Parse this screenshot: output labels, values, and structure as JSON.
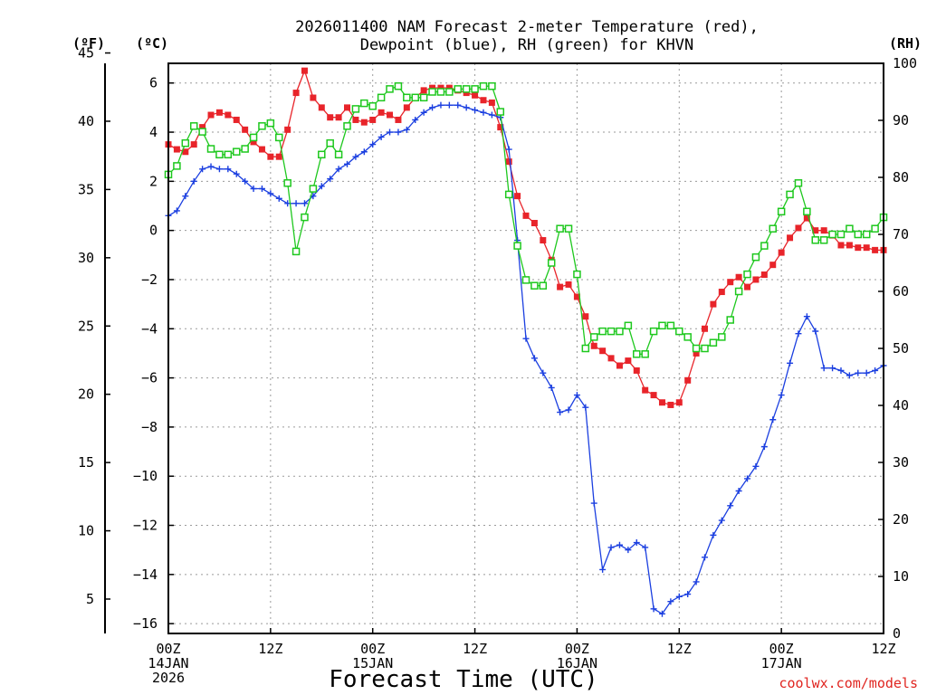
{
  "chart_data": {
    "type": "line",
    "title": "2026011400 NAM Forecast 2-meter Temperature (red), Dewpoint (blue), RH (green) for KHVN",
    "title_line1": "2026011400 NAM Forecast 2-meter Temperature (red),",
    "title_line2": "Dewpoint (blue), RH (green) for KHVN",
    "xlabel": "Forecast Time (UTC)",
    "credit": "coolwx.com/models",
    "units": {
      "fahrenheit": "(ºF)",
      "celsius": "(ºC)",
      "rh": "(RH)"
    },
    "x_range_hours": [
      0,
      84
    ],
    "celsius_range": [
      -16.4,
      6.8
    ],
    "rh_range": [
      0,
      100
    ],
    "fahrenheit_ticks": [
      5,
      10,
      15,
      20,
      25,
      30,
      35,
      40,
      45
    ],
    "celsius_ticks": [
      -16,
      -14,
      -12,
      -10,
      -8,
      -6,
      -4,
      -2,
      0,
      2,
      4,
      6
    ],
    "rh_ticks": [
      0,
      10,
      20,
      30,
      40,
      50,
      60,
      70,
      80,
      90,
      100
    ],
    "x_ticks": [
      {
        "hour": 0,
        "lines": [
          "00Z",
          "14JAN",
          "2026"
        ]
      },
      {
        "hour": 12,
        "lines": [
          "12Z"
        ]
      },
      {
        "hour": 24,
        "lines": [
          "00Z",
          "15JAN"
        ]
      },
      {
        "hour": 36,
        "lines": [
          "12Z"
        ]
      },
      {
        "hour": 48,
        "lines": [
          "00Z",
          "16JAN"
        ]
      },
      {
        "hour": 60,
        "lines": [
          "12Z"
        ]
      },
      {
        "hour": 72,
        "lines": [
          "00Z",
          "17JAN"
        ]
      },
      {
        "hour": 84,
        "lines": [
          "12Z"
        ]
      }
    ],
    "series": [
      {
        "name": "Temperature",
        "unit": "C",
        "color": "#e8242a",
        "marker": "square-filled",
        "x": [
          0,
          1,
          2,
          3,
          4,
          5,
          6,
          7,
          8,
          9,
          10,
          11,
          12,
          13,
          14,
          15,
          16,
          17,
          18,
          19,
          20,
          21,
          22,
          23,
          24,
          25,
          26,
          27,
          28,
          29,
          30,
          31,
          32,
          33,
          34,
          35,
          36,
          37,
          38,
          39,
          40,
          41,
          42,
          43,
          44,
          45,
          46,
          47,
          48,
          49,
          50,
          51,
          52,
          53,
          54,
          55,
          56,
          57,
          58,
          59,
          60,
          61,
          62,
          63,
          64,
          65,
          66,
          67,
          68,
          69,
          70,
          71,
          72,
          73,
          74,
          75,
          76,
          77,
          78,
          79,
          80,
          81,
          82,
          83,
          84
        ],
        "values": [
          3.5,
          3.3,
          3.2,
          3.5,
          4.2,
          4.7,
          4.8,
          4.7,
          4.5,
          4.1,
          3.6,
          3.3,
          3.0,
          3.0,
          4.1,
          5.6,
          6.5,
          5.4,
          5.0,
          4.6,
          4.6,
          5.0,
          4.5,
          4.4,
          4.5,
          4.8,
          4.7,
          4.5,
          5.0,
          5.4,
          5.7,
          5.8,
          5.8,
          5.8,
          5.7,
          5.6,
          5.5,
          5.3,
          5.2,
          4.2,
          2.8,
          1.4,
          0.6,
          0.3,
          -0.4,
          -1.2,
          -2.3,
          -2.2,
          -2.7,
          -3.5,
          -4.7,
          -4.9,
          -5.2,
          -5.5,
          -5.3,
          -5.7,
          -6.5,
          -6.7,
          -7.0,
          -7.1,
          -7.0,
          -6.1,
          -5.0,
          -4.0,
          -3.0,
          -2.5,
          -2.1,
          -1.9,
          -2.3,
          -2.0,
          -1.8,
          -1.4,
          -0.9,
          -0.3,
          0.1,
          0.5,
          0.0,
          0.0,
          -0.2,
          -0.6,
          -0.6,
          -0.7,
          -0.7,
          -0.8,
          -0.8
        ]
      },
      {
        "name": "Dewpoint",
        "unit": "C",
        "color": "#1b3fe0",
        "marker": "plus",
        "x": [
          0,
          1,
          2,
          3,
          4,
          5,
          6,
          7,
          8,
          9,
          10,
          11,
          12,
          13,
          14,
          15,
          16,
          17,
          18,
          19,
          20,
          21,
          22,
          23,
          24,
          25,
          26,
          27,
          28,
          29,
          30,
          31,
          32,
          33,
          34,
          35,
          36,
          37,
          38,
          39,
          40,
          41,
          42,
          43,
          44,
          45,
          46,
          47,
          48,
          49,
          50,
          51,
          52,
          53,
          54,
          55,
          56,
          57,
          58,
          59,
          60,
          61,
          62,
          63,
          64,
          65,
          66,
          67,
          68,
          69,
          70,
          71,
          72,
          73,
          74,
          75,
          76,
          77,
          78,
          79,
          80,
          81,
          82,
          83,
          84
        ],
        "values": [
          0.6,
          0.8,
          1.4,
          2.0,
          2.5,
          2.6,
          2.5,
          2.5,
          2.3,
          2.0,
          1.7,
          1.7,
          1.5,
          1.3,
          1.1,
          1.1,
          1.1,
          1.4,
          1.8,
          2.1,
          2.5,
          2.7,
          3.0,
          3.2,
          3.5,
          3.8,
          4.0,
          4.0,
          4.1,
          4.5,
          4.8,
          5.0,
          5.1,
          5.1,
          5.1,
          5.0,
          4.9,
          4.8,
          4.7,
          4.6,
          3.3,
          -0.4,
          -4.4,
          -5.2,
          -5.8,
          -6.4,
          -7.4,
          -7.3,
          -6.7,
          -7.2,
          -11.1,
          -13.8,
          -12.9,
          -12.8,
          -13.0,
          -12.7,
          -12.9,
          -15.4,
          -15.6,
          -15.1,
          -14.9,
          -14.8,
          -14.3,
          -13.3,
          -12.4,
          -11.8,
          -11.2,
          -10.6,
          -10.1,
          -9.6,
          -8.8,
          -7.7,
          -6.7,
          -5.4,
          -4.2,
          -3.5,
          -4.1,
          -5.6,
          -5.6,
          -5.7,
          -5.9,
          -5.8,
          -5.8,
          -5.7,
          -5.5
        ]
      },
      {
        "name": "RH",
        "unit": "%",
        "color": "#1ec81e",
        "marker": "square-open",
        "x": [
          0,
          1,
          2,
          3,
          4,
          5,
          6,
          7,
          8,
          9,
          10,
          11,
          12,
          13,
          14,
          15,
          16,
          17,
          18,
          19,
          20,
          21,
          22,
          23,
          24,
          25,
          26,
          27,
          28,
          29,
          30,
          31,
          32,
          33,
          34,
          35,
          36,
          37,
          38,
          39,
          40,
          41,
          42,
          43,
          44,
          45,
          46,
          47,
          48,
          49,
          50,
          51,
          52,
          53,
          54,
          55,
          56,
          57,
          58,
          59,
          60,
          61,
          62,
          63,
          64,
          65,
          66,
          67,
          68,
          69,
          70,
          71,
          72,
          73,
          74,
          75,
          76,
          77,
          78,
          79,
          80,
          81,
          82,
          83,
          84
        ],
        "values": [
          80.5,
          82,
          86,
          89,
          88,
          85,
          84,
          84,
          84.5,
          85,
          87,
          89,
          89.5,
          87,
          79,
          67,
          73,
          78,
          84,
          86,
          84,
          89,
          92,
          93,
          92.5,
          94,
          95.5,
          96,
          94,
          94,
          94,
          95,
          95,
          95,
          95.5,
          95.5,
          95.5,
          96,
          96,
          91.5,
          77,
          68,
          62,
          61,
          61,
          65,
          71,
          71,
          63,
          50,
          52,
          53,
          53,
          53,
          54,
          49,
          49,
          53,
          54,
          54,
          53,
          52,
          50,
          50,
          51,
          52,
          55,
          60,
          63,
          66,
          68,
          71,
          74,
          77,
          79,
          74,
          69,
          69,
          70,
          70,
          71,
          70,
          70,
          71,
          73
        ]
      }
    ]
  }
}
